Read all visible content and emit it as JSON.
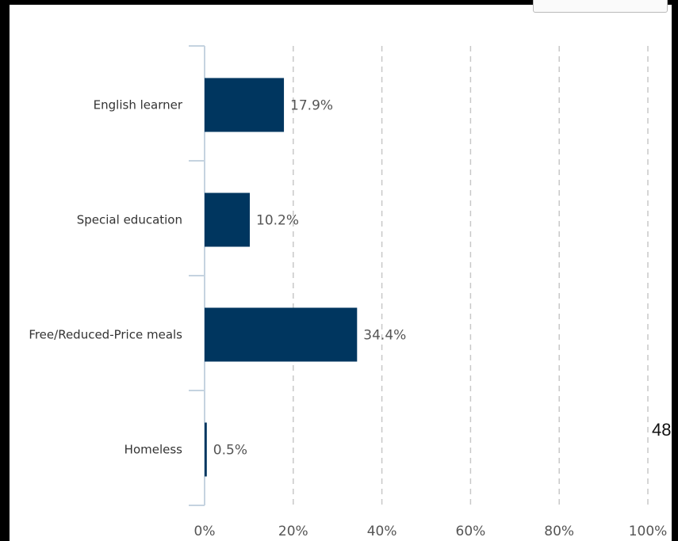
{
  "chart_data": {
    "type": "bar",
    "orientation": "horizontal",
    "categories": [
      "English learner",
      "Special education",
      "Free/Reduced-Price meals",
      "Homeless"
    ],
    "values": [
      17.9,
      10.2,
      34.4,
      0.5
    ],
    "value_labels": [
      "17.9%",
      "10.2%",
      "34.4%",
      "0.5%"
    ],
    "xlim": [
      0,
      100
    ],
    "x_ticks": [
      0,
      20,
      40,
      60,
      80,
      100
    ],
    "x_tick_labels": [
      "0%",
      "20%",
      "40%",
      "60%",
      "80%",
      "100%"
    ],
    "grid": "vertical dashed",
    "bar_color": "#00365f",
    "title": "",
    "xlabel": "",
    "ylabel": ""
  },
  "stray_text": "48"
}
